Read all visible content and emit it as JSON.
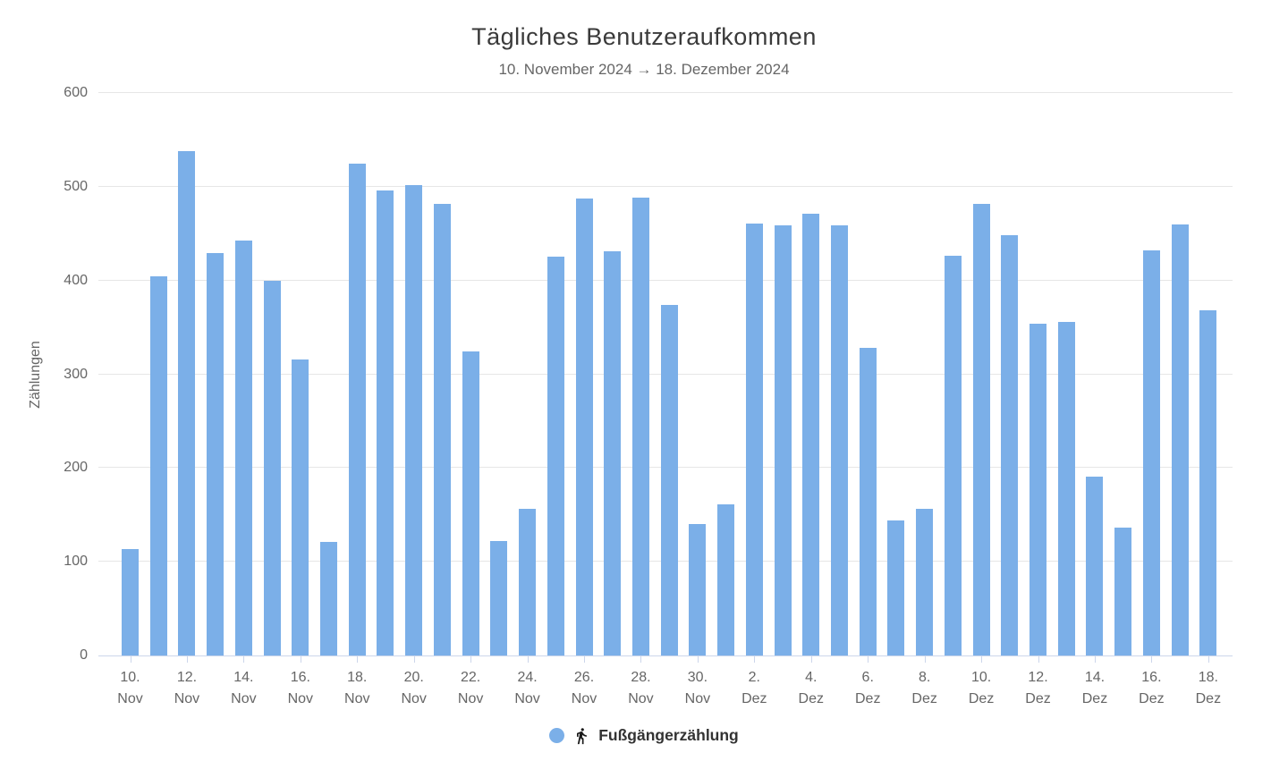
{
  "chart_data": {
    "type": "bar",
    "title": "Tägliches Benutzeraufkommen",
    "subtitle": "10. November 2024 → 18. Dezember 2024",
    "xlabel": "",
    "ylabel": "Zählungen",
    "ylim": [
      0,
      600
    ],
    "yticks": [
      0,
      100,
      200,
      300,
      400,
      500,
      600
    ],
    "grid": true,
    "xtick_every": 2,
    "legend_position": "bottom",
    "series_name": "Fußgängerzählung",
    "legend_icon": "pedestrian-icon",
    "categories": [
      "10. Nov",
      "11. Nov",
      "12. Nov",
      "13. Nov",
      "14. Nov",
      "15. Nov",
      "16. Nov",
      "17. Nov",
      "18. Nov",
      "19. Nov",
      "20. Nov",
      "21. Nov",
      "22. Nov",
      "23. Nov",
      "24. Nov",
      "25. Nov",
      "26. Nov",
      "27. Nov",
      "28. Nov",
      "29. Nov",
      "30. Nov",
      "1. Dez",
      "2. Dez",
      "3. Dez",
      "4. Dez",
      "5. Dez",
      "6. Dez",
      "7. Dez",
      "8. Dez",
      "9. Dez",
      "10. Dez",
      "11. Dez",
      "12. Dez",
      "13. Dez",
      "14. Dez",
      "15. Dez",
      "16. Dez",
      "17. Dez",
      "18. Dez"
    ],
    "values": [
      114,
      404,
      538,
      429,
      443,
      400,
      316,
      121,
      525,
      496,
      502,
      482,
      324,
      122,
      156,
      425,
      487,
      431,
      488,
      374,
      140,
      161,
      461,
      459,
      471,
      459,
      328,
      144,
      156,
      426,
      482,
      448,
      354,
      356,
      191,
      136,
      432,
      460,
      368
    ],
    "colors": {
      "bar": "#7bafe8",
      "grid": "#e6e6e6",
      "axis": "#ccd6eb",
      "labels": "#666666",
      "title": "#3a3a3a",
      "subtitle": "#666666",
      "legend_text": "#333333",
      "icon": "#1a1a1a"
    }
  }
}
